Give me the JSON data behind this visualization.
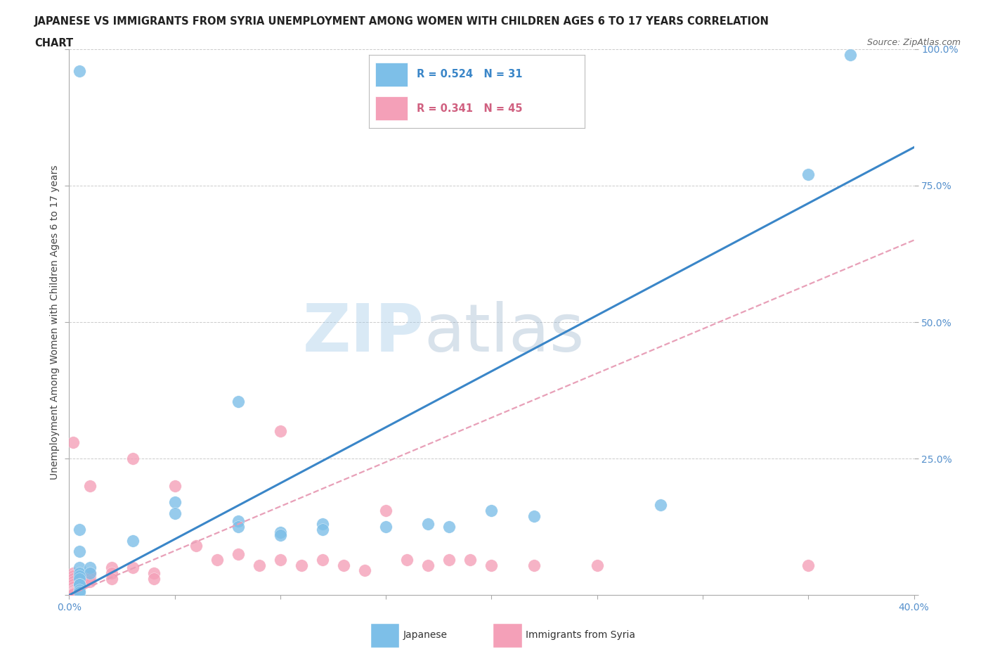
{
  "title_line1": "JAPANESE VS IMMIGRANTS FROM SYRIA UNEMPLOYMENT AMONG WOMEN WITH CHILDREN AGES 6 TO 17 YEARS CORRELATION",
  "title_line2": "CHART",
  "source": "Source: ZipAtlas.com",
  "ylabel": "Unemployment Among Women with Children Ages 6 to 17 years",
  "xlim": [
    0.0,
    0.4
  ],
  "ylim": [
    0.0,
    1.0
  ],
  "xticks": [
    0.0,
    0.05,
    0.1,
    0.15,
    0.2,
    0.25,
    0.3,
    0.35,
    0.4
  ],
  "xticklabels": [
    "0.0%",
    "",
    "",
    "",
    "",
    "",
    "",
    "",
    "40.0%"
  ],
  "yticks": [
    0.0,
    0.25,
    0.5,
    0.75,
    1.0
  ],
  "yticklabels": [
    "",
    "25.0%",
    "50.0%",
    "75.0%",
    "100.0%"
  ],
  "japanese_color": "#7dbfe8",
  "syria_color": "#f4a0b8",
  "japanese_line_color": "#3a86c8",
  "syria_line_color": "#e8a0b8",
  "japanese_R": 0.524,
  "japanese_N": 31,
  "syria_R": 0.341,
  "syria_N": 45,
  "watermark_zip": "ZIP",
  "watermark_atlas": "atlas",
  "background_color": "#ffffff",
  "grid_color": "#cccccc",
  "japanese_scatter_x": [
    0.005,
    0.005,
    0.005,
    0.01,
    0.01,
    0.005,
    0.005,
    0.005,
    0.005,
    0.005,
    0.005,
    0.03,
    0.005,
    0.05,
    0.005,
    0.05,
    0.08,
    0.08,
    0.1,
    0.1,
    0.12,
    0.12,
    0.17,
    0.2,
    0.15,
    0.18,
    0.22,
    0.28,
    0.35,
    0.37,
    0.08
  ],
  "japanese_scatter_y": [
    0.96,
    0.05,
    0.04,
    0.05,
    0.04,
    0.035,
    0.03,
    0.02,
    0.02,
    0.01,
    0.005,
    0.1,
    0.08,
    0.17,
    0.12,
    0.15,
    0.135,
    0.125,
    0.115,
    0.11,
    0.13,
    0.12,
    0.13,
    0.155,
    0.125,
    0.125,
    0.145,
    0.165,
    0.77,
    0.99,
    0.355
  ],
  "syria_scatter_x": [
    0.002,
    0.002,
    0.002,
    0.002,
    0.002,
    0.002,
    0.002,
    0.002,
    0.002,
    0.002,
    0.002,
    0.002,
    0.002,
    0.01,
    0.01,
    0.01,
    0.01,
    0.01,
    0.02,
    0.02,
    0.02,
    0.03,
    0.03,
    0.04,
    0.04,
    0.05,
    0.06,
    0.07,
    0.08,
    0.09,
    0.1,
    0.1,
    0.11,
    0.12,
    0.13,
    0.14,
    0.15,
    0.16,
    0.17,
    0.18,
    0.19,
    0.2,
    0.22,
    0.25,
    0.35
  ],
  "syria_scatter_y": [
    0.04,
    0.035,
    0.03,
    0.025,
    0.02,
    0.015,
    0.01,
    0.008,
    0.006,
    0.004,
    0.003,
    0.002,
    0.28,
    0.04,
    0.035,
    0.03,
    0.025,
    0.2,
    0.05,
    0.04,
    0.03,
    0.25,
    0.05,
    0.04,
    0.03,
    0.2,
    0.09,
    0.065,
    0.075,
    0.055,
    0.3,
    0.065,
    0.055,
    0.065,
    0.055,
    0.045,
    0.155,
    0.065,
    0.055,
    0.065,
    0.065,
    0.055,
    0.055,
    0.055,
    0.055
  ],
  "blue_line_x": [
    0.0,
    0.4
  ],
  "blue_line_y": [
    0.0,
    0.82
  ],
  "pink_line_x": [
    0.0,
    0.4
  ],
  "pink_line_y": [
    0.0,
    0.65
  ]
}
